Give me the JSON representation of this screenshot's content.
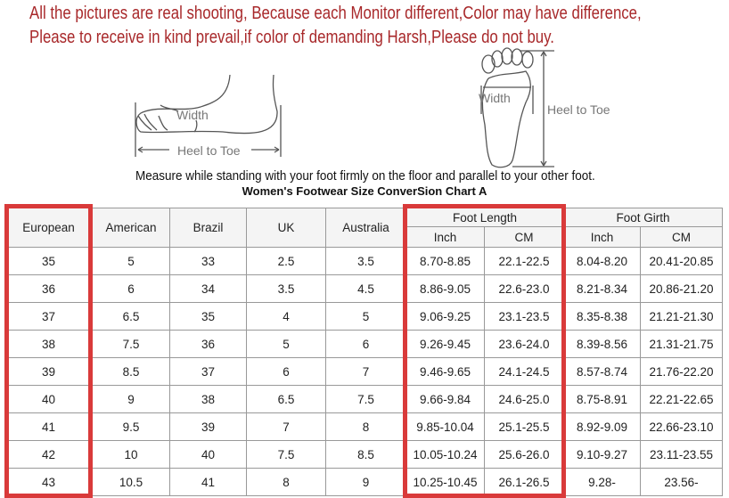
{
  "notice": {
    "line1": "All the pictures are real shooting, Because each Monitor different,Color may have difference,",
    "line2": "Please to receive in kind prevail,if color of demanding Harsh,Please do not buy."
  },
  "diagram": {
    "side_width": "Width",
    "side_heel_to_toe": "Heel to Toe",
    "top_width": "Width",
    "top_heel_to_toe": "Heel to Toe"
  },
  "instruction": "Measure while standing with your foot firmly on the floor and parallel to your other foot.",
  "chart_title": "Women's Footwear Size ConverSion Chart A",
  "highlight_color": "#d93a3a",
  "table": {
    "headers": [
      "European",
      "American",
      "Brazil",
      "UK",
      "Australia"
    ],
    "group_length": "Foot Length",
    "group_girth": "Foot Girth",
    "sub": [
      "Inch",
      "CM",
      "Inch",
      "CM"
    ],
    "rows": [
      [
        "35",
        "5",
        "33",
        "2.5",
        "3.5",
        "8.70-8.85",
        "22.1-22.5",
        "8.04-8.20",
        "20.41-20.85"
      ],
      [
        "36",
        "6",
        "34",
        "3.5",
        "4.5",
        "8.86-9.05",
        "22.6-23.0",
        "8.21-8.34",
        "20.86-21.20"
      ],
      [
        "37",
        "6.5",
        "35",
        "4",
        "5",
        "9.06-9.25",
        "23.1-23.5",
        "8.35-8.38",
        "21.21-21.30"
      ],
      [
        "38",
        "7.5",
        "36",
        "5",
        "6",
        "9.26-9.45",
        "23.6-24.0",
        "8.39-8.56",
        "21.31-21.75"
      ],
      [
        "39",
        "8.5",
        "37",
        "6",
        "7",
        "9.46-9.65",
        "24.1-24.5",
        "8.57-8.74",
        "21.76-22.20"
      ],
      [
        "40",
        "9",
        "38",
        "6.5",
        "7.5",
        "9.66-9.84",
        "24.6-25.0",
        "8.75-8.91",
        "22.21-22.65"
      ],
      [
        "41",
        "9.5",
        "39",
        "7",
        "8",
        "9.85-10.04",
        "25.1-25.5",
        "8.92-9.09",
        "22.66-23.10"
      ],
      [
        "42",
        "10",
        "40",
        "7.5",
        "8.5",
        "10.05-10.24",
        "25.6-26.0",
        "9.10-9.27",
        "23.11-23.55"
      ],
      [
        "43",
        "10.5",
        "41",
        "8",
        "9",
        "10.25-10.45",
        "26.1-26.5",
        "9.28-",
        "23.56-"
      ]
    ]
  }
}
